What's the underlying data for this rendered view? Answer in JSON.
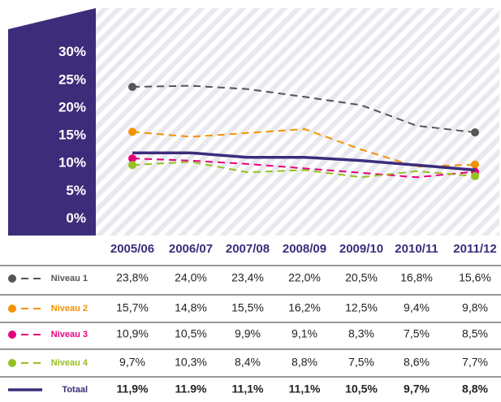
{
  "chart_data": {
    "type": "line",
    "categories": [
      "2005/06",
      "2006/07",
      "2007/08",
      "2008/09",
      "2009/10",
      "2010/11",
      "2011/12"
    ],
    "ylim": [
      -3,
      38
    ],
    "yticks": [
      {
        "value": 0,
        "label": "0%"
      },
      {
        "value": 5,
        "label": "5%"
      },
      {
        "value": 10,
        "label": "10%"
      },
      {
        "value": 15,
        "label": "15%"
      },
      {
        "value": 20,
        "label": "20%"
      },
      {
        "value": 25,
        "label": "25%"
      },
      {
        "value": 30,
        "label": "30%"
      }
    ],
    "series": [
      {
        "name": "Niveau 1",
        "color": "#555555",
        "dashed": true,
        "values": [
          23.8,
          24.0,
          23.4,
          22.0,
          20.5,
          16.8,
          15.6
        ],
        "value_labels": [
          "23,8%",
          "24,0%",
          "23,4%",
          "22,0%",
          "20,5%",
          "16,8%",
          "15,6%"
        ]
      },
      {
        "name": "Niveau 2",
        "color": "#f39200",
        "dashed": true,
        "values": [
          15.7,
          14.8,
          15.5,
          16.2,
          12.5,
          9.4,
          9.8
        ],
        "value_labels": [
          "15,7%",
          "14,8%",
          "15,5%",
          "16,2%",
          "12,5%",
          "9,4%",
          "9,8%"
        ]
      },
      {
        "name": "Niveau 3",
        "color": "#e6007e",
        "dashed": true,
        "values": [
          10.9,
          10.5,
          9.9,
          9.1,
          8.3,
          7.5,
          8.5
        ],
        "value_labels": [
          "10,9%",
          "10,5%",
          "9,9%",
          "9,1%",
          "8,3%",
          "7,5%",
          "8,5%"
        ]
      },
      {
        "name": "Niveau 4",
        "color": "#95c11f",
        "dashed": true,
        "values": [
          9.7,
          10.3,
          8.4,
          8.8,
          7.5,
          8.6,
          7.7
        ],
        "value_labels": [
          "9,7%",
          "10,3%",
          "8,4%",
          "8,8%",
          "7,5%",
          "8,6%",
          "7,7%"
        ]
      },
      {
        "name": "Totaal",
        "color": "#3d2c7a",
        "dashed": false,
        "values": [
          11.9,
          11.9,
          11.1,
          11.1,
          10.5,
          9.7,
          8.8
        ],
        "value_labels": [
          "11,9%",
          "11.9%",
          "11,1%",
          "11,1%",
          "10,5%",
          "9,7%",
          "8,8%"
        ]
      }
    ]
  }
}
